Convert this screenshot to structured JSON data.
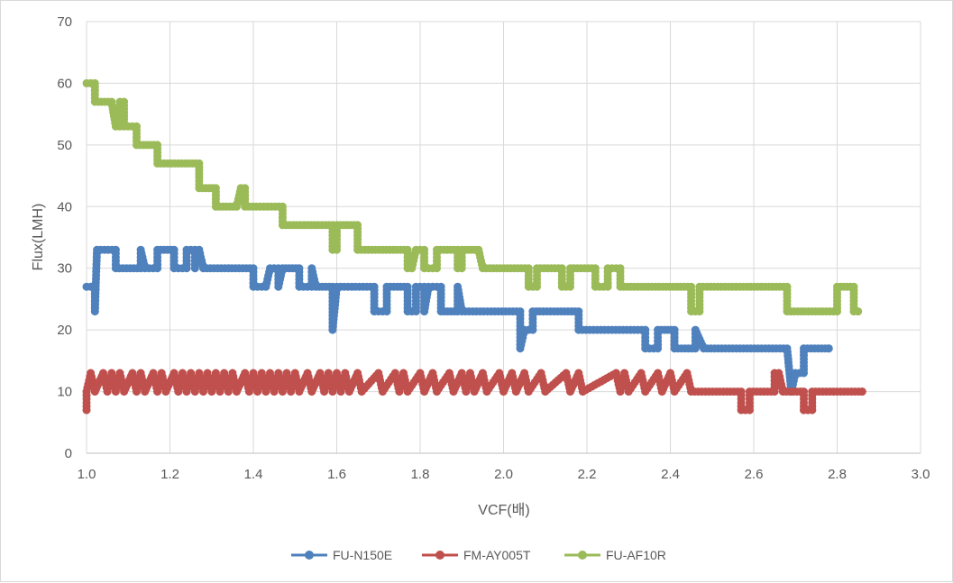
{
  "chart_data": {
    "type": "line",
    "title": "",
    "xlabel": "VCF(배)",
    "ylabel": "Flux(LMH)",
    "xlim": [
      1.0,
      3.0
    ],
    "ylim": [
      0,
      70
    ],
    "x_ticks": [
      "1.0",
      "1.2",
      "1.4",
      "1.6",
      "1.8",
      "2.0",
      "2.2",
      "2.4",
      "2.6",
      "2.8",
      "3.0"
    ],
    "y_ticks": [
      "0",
      "10",
      "20",
      "30",
      "40",
      "50",
      "60",
      "70"
    ],
    "grid": true,
    "legend_position": "bottom",
    "series": [
      {
        "name": "FU-N150E",
        "color": "#4f81bd",
        "marker": "circle",
        "points": [
          [
            1.0,
            27
          ],
          [
            1.02,
            27
          ],
          [
            1.02,
            23
          ],
          [
            1.025,
            33
          ],
          [
            1.07,
            33
          ],
          [
            1.07,
            30
          ],
          [
            1.13,
            30
          ],
          [
            1.13,
            33
          ],
          [
            1.14,
            30
          ],
          [
            1.17,
            30
          ],
          [
            1.17,
            33
          ],
          [
            1.21,
            33
          ],
          [
            1.21,
            30
          ],
          [
            1.24,
            30
          ],
          [
            1.24,
            33
          ],
          [
            1.26,
            33
          ],
          [
            1.26,
            30
          ],
          [
            1.27,
            33
          ],
          [
            1.28,
            30
          ],
          [
            1.4,
            30
          ],
          [
            1.4,
            27
          ],
          [
            1.43,
            27
          ],
          [
            1.44,
            30
          ],
          [
            1.46,
            30
          ],
          [
            1.46,
            27
          ],
          [
            1.47,
            30
          ],
          [
            1.51,
            30
          ],
          [
            1.51,
            27
          ],
          [
            1.54,
            27
          ],
          [
            1.54,
            30
          ],
          [
            1.55,
            27
          ],
          [
            1.59,
            27
          ],
          [
            1.59,
            20
          ],
          [
            1.6,
            27
          ],
          [
            1.69,
            27
          ],
          [
            1.69,
            23
          ],
          [
            1.72,
            23
          ],
          [
            1.72,
            27
          ],
          [
            1.77,
            27
          ],
          [
            1.77,
            23
          ],
          [
            1.79,
            23
          ],
          [
            1.79,
            27
          ],
          [
            1.81,
            27
          ],
          [
            1.81,
            23
          ],
          [
            1.82,
            27
          ],
          [
            1.85,
            27
          ],
          [
            1.85,
            23
          ],
          [
            1.89,
            23
          ],
          [
            1.89,
            27
          ],
          [
            1.9,
            23
          ],
          [
            2.04,
            23
          ],
          [
            2.04,
            17
          ],
          [
            2.05,
            20
          ],
          [
            2.07,
            20
          ],
          [
            2.07,
            23
          ],
          [
            2.18,
            23
          ],
          [
            2.18,
            20
          ],
          [
            2.34,
            20
          ],
          [
            2.34,
            17
          ],
          [
            2.37,
            17
          ],
          [
            2.37,
            20
          ],
          [
            2.41,
            20
          ],
          [
            2.41,
            17
          ],
          [
            2.46,
            17
          ],
          [
            2.46,
            20
          ],
          [
            2.48,
            17
          ],
          [
            2.68,
            17
          ],
          [
            2.69,
            10
          ],
          [
            2.7,
            13
          ],
          [
            2.72,
            13
          ],
          [
            2.72,
            17
          ],
          [
            2.78,
            17
          ]
        ]
      },
      {
        "name": "FM-AY005T",
        "color": "#c0504d",
        "marker": "circle",
        "points": [
          [
            1.0,
            7
          ],
          [
            1.0,
            10
          ],
          [
            1.01,
            13
          ],
          [
            1.02,
            10
          ],
          [
            1.04,
            13
          ],
          [
            1.05,
            10
          ],
          [
            1.06,
            13
          ],
          [
            1.07,
            10
          ],
          [
            1.08,
            13
          ],
          [
            1.09,
            10
          ],
          [
            1.11,
            13
          ],
          [
            1.12,
            10
          ],
          [
            1.13,
            13
          ],
          [
            1.14,
            10
          ],
          [
            1.16,
            13
          ],
          [
            1.17,
            10
          ],
          [
            1.18,
            13
          ],
          [
            1.19,
            10
          ],
          [
            1.21,
            13
          ],
          [
            1.22,
            10
          ],
          [
            1.23,
            13
          ],
          [
            1.24,
            10
          ],
          [
            1.25,
            13
          ],
          [
            1.26,
            10
          ],
          [
            1.27,
            13
          ],
          [
            1.28,
            10
          ],
          [
            1.29,
            13
          ],
          [
            1.3,
            10
          ],
          [
            1.31,
            13
          ],
          [
            1.32,
            10
          ],
          [
            1.33,
            13
          ],
          [
            1.34,
            10
          ],
          [
            1.35,
            13
          ],
          [
            1.36,
            10
          ],
          [
            1.38,
            13
          ],
          [
            1.39,
            10
          ],
          [
            1.4,
            13
          ],
          [
            1.41,
            10
          ],
          [
            1.42,
            13
          ],
          [
            1.43,
            10
          ],
          [
            1.44,
            13
          ],
          [
            1.45,
            10
          ],
          [
            1.46,
            13
          ],
          [
            1.47,
            10
          ],
          [
            1.48,
            13
          ],
          [
            1.49,
            10
          ],
          [
            1.5,
            13
          ],
          [
            1.51,
            10
          ],
          [
            1.53,
            13
          ],
          [
            1.54,
            10
          ],
          [
            1.56,
            13
          ],
          [
            1.57,
            10
          ],
          [
            1.58,
            13
          ],
          [
            1.59,
            10
          ],
          [
            1.6,
            13
          ],
          [
            1.61,
            10
          ],
          [
            1.62,
            13
          ],
          [
            1.63,
            10
          ],
          [
            1.65,
            13
          ],
          [
            1.66,
            10
          ],
          [
            1.7,
            13
          ],
          [
            1.71,
            10
          ],
          [
            1.74,
            13
          ],
          [
            1.75,
            10
          ],
          [
            1.76,
            13
          ],
          [
            1.77,
            10
          ],
          [
            1.8,
            13
          ],
          [
            1.81,
            10
          ],
          [
            1.83,
            13
          ],
          [
            1.84,
            10
          ],
          [
            1.87,
            13
          ],
          [
            1.88,
            10
          ],
          [
            1.9,
            13
          ],
          [
            1.91,
            10
          ],
          [
            1.92,
            13
          ],
          [
            1.93,
            10
          ],
          [
            1.95,
            13
          ],
          [
            1.96,
            10
          ],
          [
            1.99,
            13
          ],
          [
            2.0,
            10
          ],
          [
            2.02,
            13
          ],
          [
            2.03,
            10
          ],
          [
            2.05,
            13
          ],
          [
            2.06,
            10
          ],
          [
            2.09,
            13
          ],
          [
            2.1,
            10
          ],
          [
            2.15,
            13
          ],
          [
            2.16,
            10
          ],
          [
            2.18,
            13
          ],
          [
            2.19,
            10
          ],
          [
            2.27,
            13
          ],
          [
            2.28,
            10
          ],
          [
            2.29,
            13
          ],
          [
            2.3,
            10
          ],
          [
            2.33,
            13
          ],
          [
            2.34,
            10
          ],
          [
            2.37,
            13
          ],
          [
            2.38,
            10
          ],
          [
            2.4,
            13
          ],
          [
            2.41,
            10
          ],
          [
            2.44,
            13
          ],
          [
            2.45,
            10
          ],
          [
            2.57,
            10
          ],
          [
            2.57,
            7
          ],
          [
            2.59,
            7
          ],
          [
            2.59,
            10
          ],
          [
            2.65,
            10
          ],
          [
            2.65,
            13
          ],
          [
            2.66,
            13
          ],
          [
            2.67,
            10
          ],
          [
            2.72,
            10
          ],
          [
            2.72,
            7
          ],
          [
            2.74,
            7
          ],
          [
            2.74,
            10
          ],
          [
            2.86,
            10
          ]
        ]
      },
      {
        "name": "FU-AF10R",
        "color": "#9bbb59",
        "marker": "circle",
        "points": [
          [
            1.0,
            60
          ],
          [
            1.02,
            60
          ],
          [
            1.02,
            57
          ],
          [
            1.06,
            57
          ],
          [
            1.07,
            53
          ],
          [
            1.08,
            53
          ],
          [
            1.08,
            57
          ],
          [
            1.09,
            57
          ],
          [
            1.09,
            53
          ],
          [
            1.12,
            53
          ],
          [
            1.12,
            50
          ],
          [
            1.17,
            50
          ],
          [
            1.17,
            47
          ],
          [
            1.27,
            47
          ],
          [
            1.27,
            43
          ],
          [
            1.31,
            43
          ],
          [
            1.31,
            40
          ],
          [
            1.36,
            40
          ],
          [
            1.37,
            43
          ],
          [
            1.38,
            43
          ],
          [
            1.38,
            40
          ],
          [
            1.47,
            40
          ],
          [
            1.47,
            37
          ],
          [
            1.59,
            37
          ],
          [
            1.59,
            33
          ],
          [
            1.6,
            33
          ],
          [
            1.6,
            37
          ],
          [
            1.65,
            37
          ],
          [
            1.65,
            33
          ],
          [
            1.77,
            33
          ],
          [
            1.77,
            30
          ],
          [
            1.78,
            30
          ],
          [
            1.79,
            33
          ],
          [
            1.81,
            33
          ],
          [
            1.81,
            30
          ],
          [
            1.84,
            30
          ],
          [
            1.84,
            33
          ],
          [
            1.89,
            33
          ],
          [
            1.89,
            30
          ],
          [
            1.9,
            30
          ],
          [
            1.9,
            33
          ],
          [
            1.94,
            33
          ],
          [
            1.95,
            30
          ],
          [
            2.06,
            30
          ],
          [
            2.06,
            27
          ],
          [
            2.08,
            27
          ],
          [
            2.08,
            30
          ],
          [
            2.14,
            30
          ],
          [
            2.14,
            27
          ],
          [
            2.16,
            27
          ],
          [
            2.16,
            30
          ],
          [
            2.22,
            30
          ],
          [
            2.22,
            27
          ],
          [
            2.25,
            27
          ],
          [
            2.25,
            30
          ],
          [
            2.28,
            30
          ],
          [
            2.28,
            27
          ],
          [
            2.45,
            27
          ],
          [
            2.45,
            23
          ],
          [
            2.47,
            23
          ],
          [
            2.47,
            27
          ],
          [
            2.68,
            27
          ],
          [
            2.68,
            23
          ],
          [
            2.8,
            23
          ],
          [
            2.8,
            27
          ],
          [
            2.84,
            27
          ],
          [
            2.84,
            23
          ],
          [
            2.85,
            23
          ]
        ]
      }
    ]
  }
}
